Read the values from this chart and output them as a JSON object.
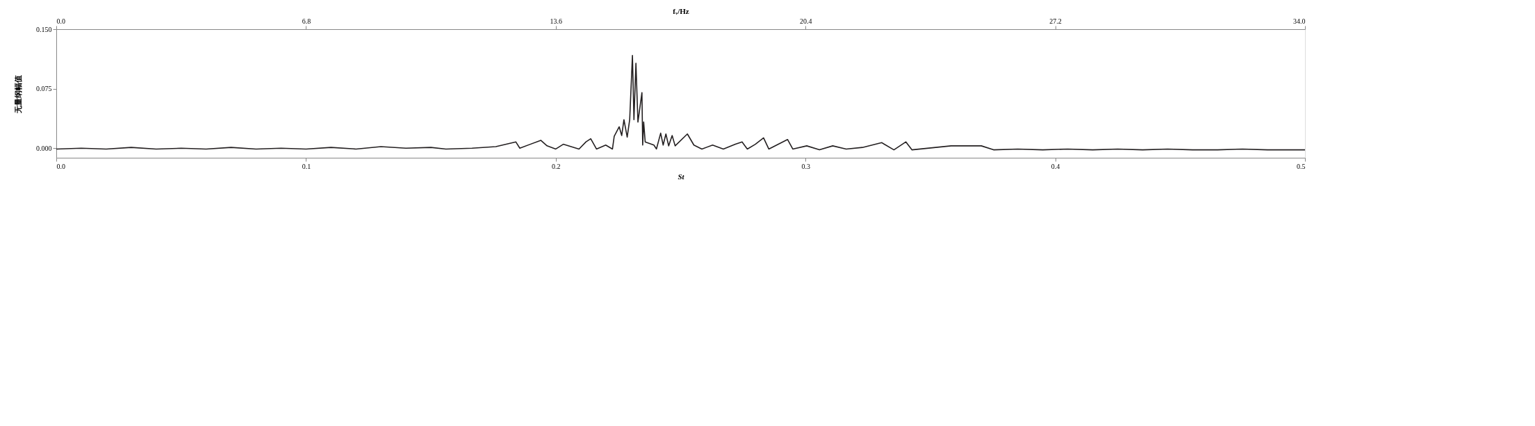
{
  "chart_data": {
    "type": "line",
    "xlabel": "St",
    "x2label": "fᵥ/Hz",
    "ylabel": "无量纲幅值",
    "xlim": [
      0.0,
      0.5
    ],
    "xticks": [
      {
        "value": 0.0,
        "label": "0.0"
      },
      0.1,
      0.2,
      0.3,
      0.4,
      0.5
    ],
    "x2lim": [
      0.0,
      34.0
    ],
    "x2ticks": [
      {
        "value": 0.0,
        "label": "0.0"
      },
      6.8,
      13.6,
      20.4,
      27.2,
      {
        "value": 34.0,
        "label": "34.0"
      }
    ],
    "ylim": [
      -0.012,
      0.15
    ],
    "yticks": [
      {
        "value": 0.0,
        "label": "0.000"
      },
      {
        "value": 0.075,
        "label": "0.075"
      },
      {
        "value": 0.15,
        "label": "0.150"
      }
    ],
    "grid": false,
    "marker": "none",
    "line_style": "solid",
    "series": [
      {
        "color": "#231f20",
        "x": [
          0.0,
          0.01,
          0.02,
          0.03,
          0.04,
          0.05,
          0.06,
          0.07,
          0.08,
          0.09,
          0.1,
          0.11,
          0.12,
          0.13,
          0.14,
          0.15,
          0.156,
          0.1665,
          0.176,
          0.184,
          0.1856,
          0.194,
          0.1965,
          0.2,
          0.203,
          0.2093,
          0.2121,
          0.214,
          0.2163,
          0.22,
          0.2227,
          0.2234,
          0.2254,
          0.2264,
          0.2273,
          0.2286,
          0.2296,
          0.2307,
          0.2313,
          0.2321,
          0.2329,
          0.2345,
          0.2348,
          0.2352,
          0.2358,
          0.2393,
          0.2403,
          0.242,
          0.243,
          0.2441,
          0.2452,
          0.2466,
          0.2478,
          0.2527,
          0.2553,
          0.2585,
          0.2628,
          0.2671,
          0.2719,
          0.2746,
          0.2767,
          0.2799,
          0.2832,
          0.2853,
          0.2928,
          0.2949,
          0.3005,
          0.3056,
          0.3109,
          0.3163,
          0.3228,
          0.3305,
          0.3354,
          0.3402,
          0.3426,
          0.3583,
          0.3704,
          0.3753,
          0.385,
          0.395,
          0.405,
          0.415,
          0.425,
          0.435,
          0.445,
          0.455,
          0.465,
          0.475,
          0.485,
          0.5
        ],
        "values": [
          -0.001,
          0.0,
          -0.001,
          0.001,
          -0.001,
          0.0,
          -0.001,
          0.001,
          -0.001,
          0.0,
          -0.001,
          0.001,
          -0.001,
          0.002,
          0.0,
          0.001,
          -0.001,
          0.0,
          0.002,
          0.008,
          0.0,
          0.01,
          0.003,
          -0.001,
          0.005,
          -0.001,
          0.008,
          0.012,
          -0.001,
          0.004,
          -0.001,
          0.015,
          0.027,
          0.016,
          0.036,
          0.014,
          0.036,
          0.117,
          0.036,
          0.107,
          0.033,
          0.07,
          0.004,
          0.033,
          0.008,
          0.004,
          -0.001,
          0.019,
          0.004,
          0.018,
          0.003,
          0.016,
          0.003,
          0.018,
          0.004,
          -0.001,
          0.004,
          -0.001,
          0.005,
          0.008,
          -0.001,
          0.005,
          0.013,
          -0.001,
          0.011,
          -0.001,
          0.003,
          -0.002,
          0.003,
          -0.001,
          0.001,
          0.007,
          -0.002,
          0.008,
          -0.002,
          0.003,
          0.003,
          -0.002,
          -0.001,
          -0.002,
          -0.001,
          -0.002,
          -0.001,
          -0.002,
          -0.001,
          -0.002,
          -0.002,
          -0.001,
          -0.002,
          -0.002
        ]
      }
    ]
  }
}
